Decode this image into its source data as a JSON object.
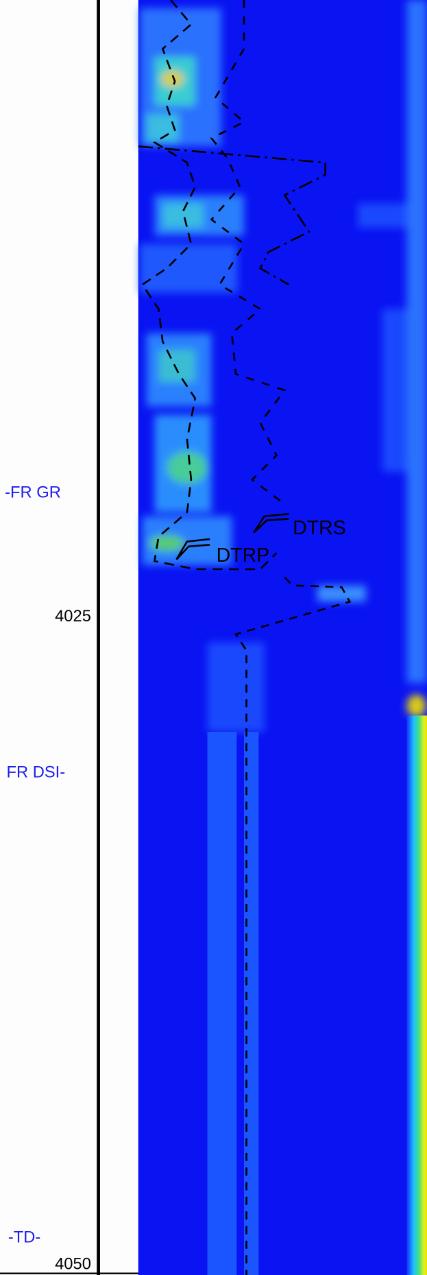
{
  "depth_track": {
    "markers": [
      "-FR GR",
      "FR DSI-",
      "-TD-"
    ],
    "depth_labels": [
      4025,
      4050
    ]
  },
  "image_track": {
    "curve_labels": [
      "DTRS",
      "DTRP"
    ]
  }
}
